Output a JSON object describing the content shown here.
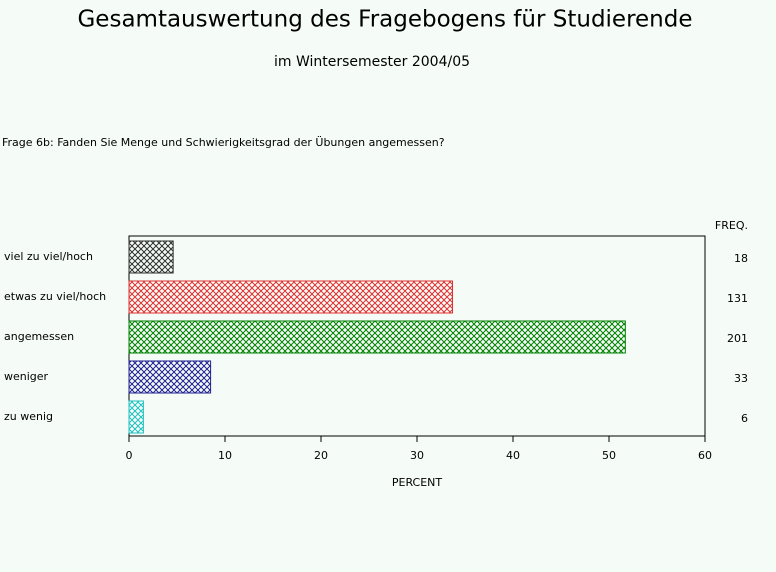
{
  "chart_data": {
    "type": "hbar",
    "title": "Gesamtauswertung des Fragebogens für Studierende",
    "subtitle": "im Wintersemester 2004/05",
    "question": "Frage 6b: Fanden Sie Menge und Schwierigkeitsgrad der Übungen angemessen?",
    "categories": [
      "viel zu viel/hoch",
      "etwas zu viel/hoch",
      "angemessen",
      "weniger",
      "zu wenig"
    ],
    "values": [
      4.6,
      33.7,
      51.7,
      8.5,
      1.5
    ],
    "colors": [
      "#303030",
      "#e03030",
      "#008000",
      "#202090",
      "#20c0c0"
    ],
    "freq_header": "FREQ.",
    "freq": [
      "18",
      "131",
      "201",
      "33",
      "6"
    ],
    "x_label": "PERCENT",
    "xlim": [
      0,
      60
    ],
    "xticks": [
      0,
      10,
      20,
      30,
      40,
      50,
      60
    ],
    "pattern": "crosshatch"
  }
}
